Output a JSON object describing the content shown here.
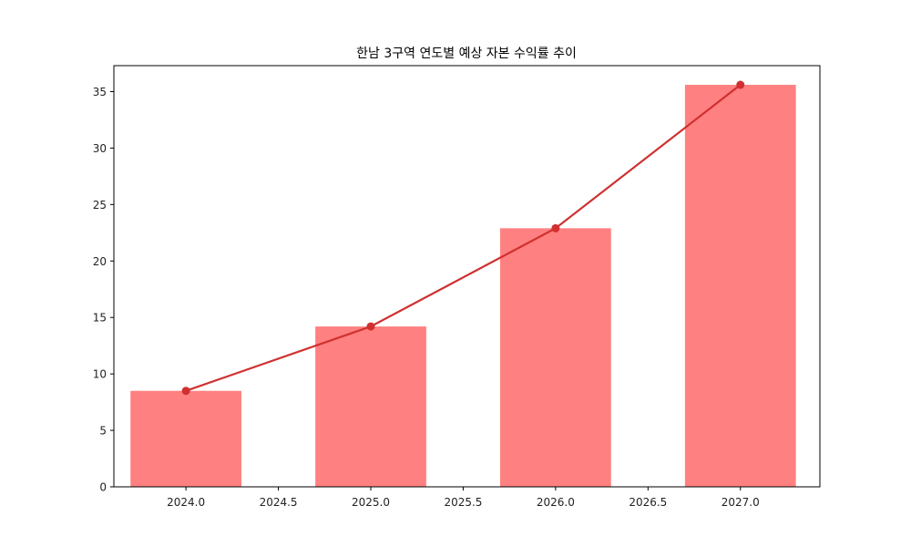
{
  "chart_data": {
    "type": "bar",
    "title": "한남 3구역 연도별 예상 자본 수익률 추이",
    "xlabel": "",
    "ylabel": "",
    "categories": [
      2024,
      2025,
      2026,
      2027
    ],
    "series": [
      {
        "name": "bar",
        "type": "bar",
        "color": "#ff8080",
        "values": [
          8.5,
          14.2,
          22.9,
          35.6
        ]
      },
      {
        "name": "line",
        "type": "line",
        "color": "#d03030",
        "marker": "circle",
        "values": [
          8.5,
          14.2,
          22.9,
          35.6
        ]
      }
    ],
    "xlim": [
      2023.61,
      2027.43
    ],
    "ylim": [
      0,
      37.3
    ],
    "xticks": [
      "2024.0",
      "2024.5",
      "2025.0",
      "2025.5",
      "2026.0",
      "2026.5",
      "2027.0"
    ],
    "yticks": [
      "0",
      "5",
      "10",
      "15",
      "20",
      "25",
      "30",
      "35"
    ],
    "grid": false,
    "legend": null,
    "bar_width": 0.6
  }
}
